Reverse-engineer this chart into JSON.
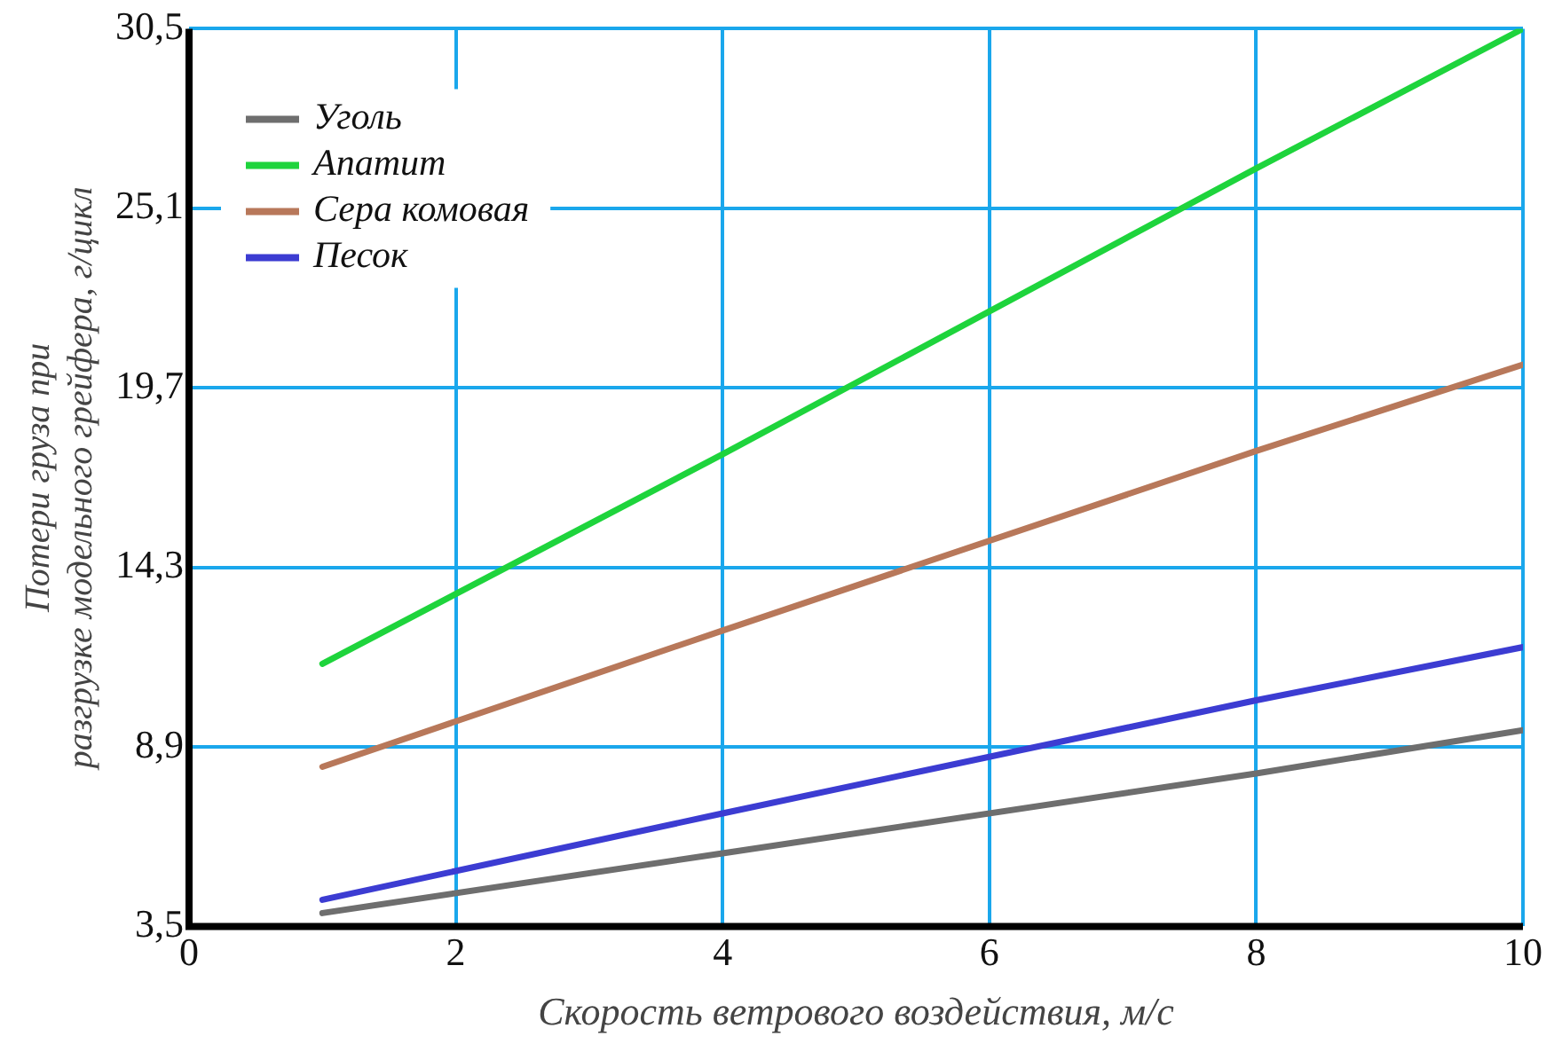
{
  "chart_data": {
    "type": "line",
    "xlabel": "Скорость ветрового воздействия, м/с",
    "ylabel": "Потери груза при разгрузке модельного грейфера, г/цикл",
    "x": [
      1,
      4,
      8,
      10
    ],
    "series": [
      {
        "name": "Уголь",
        "color": "#6e6e6e",
        "values": [
          3.9,
          5.7,
          8.1,
          9.4
        ]
      },
      {
        "name": "Апатит",
        "color": "#1ed43c",
        "values": [
          11.4,
          17.7,
          26.3,
          30.5
        ]
      },
      {
        "name": "Сера комовая",
        "color": "#b8785a",
        "values": [
          8.3,
          12.4,
          17.8,
          20.4
        ]
      },
      {
        "name": "Песок",
        "color": "#3c3cd2",
        "values": [
          4.3,
          6.9,
          10.3,
          11.9
        ]
      }
    ],
    "xlim": [
      0,
      10
    ],
    "xticks": [
      0,
      2,
      4,
      6,
      8,
      10
    ],
    "ylim": [
      3.5,
      30.5
    ],
    "yticks": [
      {
        "value": 3.5,
        "label": "3,5"
      },
      {
        "value": 8.9,
        "label": "8,9"
      },
      {
        "value": 14.3,
        "label": "14,3"
      },
      {
        "value": 19.7,
        "label": "19,7"
      },
      {
        "value": 25.1,
        "label": "25,1"
      },
      {
        "value": 30.5,
        "label": "30,5"
      }
    ],
    "grid": true,
    "legend": "top left",
    "marker": "none",
    "line_style": "solid"
  }
}
